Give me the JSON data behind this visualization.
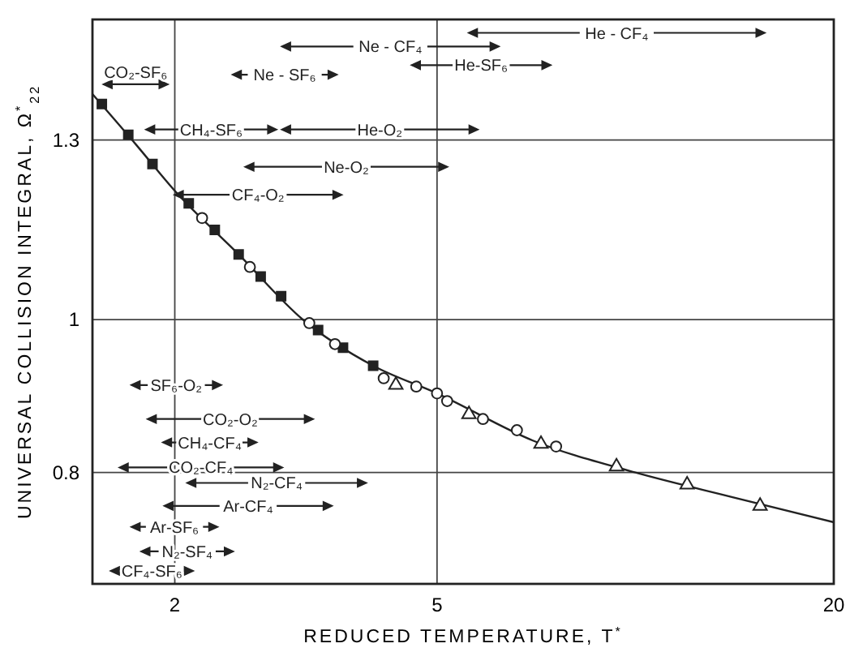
{
  "chart_data": {
    "type": "scatter",
    "xlabel": "REDUCED TEMPERATURE, T$^{*}$",
    "ylabel": "UNIVERSAL COLLISION INTEGRAL, Ω$^{*}$$_{22}$",
    "xlim": [
      1.5,
      20
    ],
    "xticks": [
      2,
      5,
      20
    ],
    "ylim": [
      0.68,
      1.55
    ],
    "yticks": [
      0.8,
      1.0,
      1.3
    ],
    "log": "xy",
    "grid": true,
    "series": [
      {
        "type": "line",
        "color": "#222222",
        "x": [
          1.5,
          1.75,
          2,
          2.5,
          3.13,
          4,
          5,
          7,
          10,
          14,
          20
        ],
        "values": [
          1.39,
          1.29,
          1.207,
          1.1,
          1.0,
          0.935,
          0.898,
          0.838,
          0.8,
          0.772,
          0.744
        ]
      },
      {
        "color": "#222222",
        "marker": "square",
        "x": [
          1.55,
          1.7,
          1.85,
          2.1,
          2.3,
          2.5,
          2.7,
          2.9,
          3.3,
          3.6,
          4.0
        ],
        "values": [
          1.37,
          1.31,
          1.255,
          1.185,
          1.14,
          1.1,
          1.065,
          1.035,
          0.985,
          0.96,
          0.935
        ]
      },
      {
        "color": "#222222",
        "marker": "circle",
        "x": [
          2.2,
          2.6,
          3.2,
          3.5,
          4.15,
          4.65,
          5,
          5.18,
          5.87,
          6.61,
          7.58
        ],
        "values": [
          1.16,
          1.08,
          0.995,
          0.965,
          0.918,
          0.907,
          0.898,
          0.888,
          0.865,
          0.851,
          0.831
        ]
      },
      {
        "color": "#222222",
        "marker": "triangle",
        "x": [
          4.33,
          5.59,
          7.19,
          9.36,
          11.98,
          15.46
        ],
        "values": [
          0.909,
          0.871,
          0.834,
          0.807,
          0.786,
          0.762
        ]
      },
      {
        "type": "line",
        "name": "CO₂-SF₆",
        "color": "#222222",
        "x": [
          1.56,
          1.95
        ],
        "values": [
          1.41,
          1.41
        ]
      },
      {
        "type": "line",
        "name": "Ne - SF₆",
        "color": "#222222",
        "x": [
          2.45,
          3.52
        ],
        "values": [
          1.43,
          1.43
        ]
      },
      {
        "type": "line",
        "name": "CH₄-SF₆",
        "color": "#222222",
        "x": [
          1.81,
          2.85
        ],
        "values": [
          1.32,
          1.32
        ]
      },
      {
        "type": "line",
        "name": "He-O₂",
        "color": "#222222",
        "x": [
          2.91,
          5.76
        ],
        "values": [
          1.32,
          1.32
        ]
      },
      {
        "type": "line",
        "name": "Ne-O₂",
        "color": "#222222",
        "x": [
          2.56,
          5.18
        ],
        "values": [
          1.25,
          1.25
        ]
      },
      {
        "type": "line",
        "name": "CF₄-O₂",
        "color": "#222222",
        "x": [
          2.0,
          3.58
        ],
        "values": [
          1.2,
          1.2
        ]
      },
      {
        "type": "line",
        "name": "Ne - CF₄",
        "color": "#222222",
        "x": [
          2.91,
          6.2
        ],
        "values": [
          1.49,
          1.49
        ]
      },
      {
        "type": "line",
        "name": "He-SF₆",
        "color": "#222222",
        "x": [
          4.58,
          7.43
        ],
        "values": [
          1.45,
          1.45
        ]
      },
      {
        "type": "line",
        "name": "He - CF₄",
        "color": "#222222",
        "x": [
          5.59,
          15.7
        ],
        "values": [
          1.52,
          1.52
        ]
      },
      {
        "type": "line",
        "name": "SF₆-O₂",
        "color": "#222222",
        "x": [
          1.72,
          2.35
        ],
        "values": [
          0.909,
          0.909
        ]
      },
      {
        "type": "line",
        "name": "CO₂-O₂",
        "color": "#222222",
        "x": [
          1.82,
          3.24
        ],
        "values": [
          0.865,
          0.865
        ]
      },
      {
        "type": "line",
        "name": "CH₄-CF₄",
        "color": "#222222",
        "x": [
          1.92,
          2.66
        ],
        "values": [
          0.836,
          0.836
        ]
      },
      {
        "type": "line",
        "name": "CO₂-CF₄",
        "color": "#222222",
        "x": [
          1.65,
          2.91
        ],
        "values": [
          0.806,
          0.806
        ]
      },
      {
        "type": "line",
        "name": "N₂-CF₄",
        "color": "#222222",
        "x": [
          2.09,
          3.9
        ],
        "values": [
          0.788,
          0.788
        ]
      },
      {
        "type": "line",
        "name": "Ar-CF₄",
        "color": "#222222",
        "x": [
          1.93,
          3.46
        ],
        "values": [
          0.762,
          0.762
        ]
      },
      {
        "type": "line",
        "name": "Ar-SF₆",
        "color": "#222222",
        "x": [
          1.72,
          2.32
        ],
        "values": [
          0.739,
          0.739
        ]
      },
      {
        "type": "line",
        "name": "N₂-SF₄",
        "color": "#222222",
        "x": [
          1.78,
          2.45
        ],
        "values": [
          0.713,
          0.713
        ]
      },
      {
        "type": "line",
        "name": "CF₄-SF₆",
        "color": "#222222",
        "x": [
          1.6,
          2.13
        ],
        "values": [
          0.693,
          0.693
        ]
      }
    ]
  }
}
